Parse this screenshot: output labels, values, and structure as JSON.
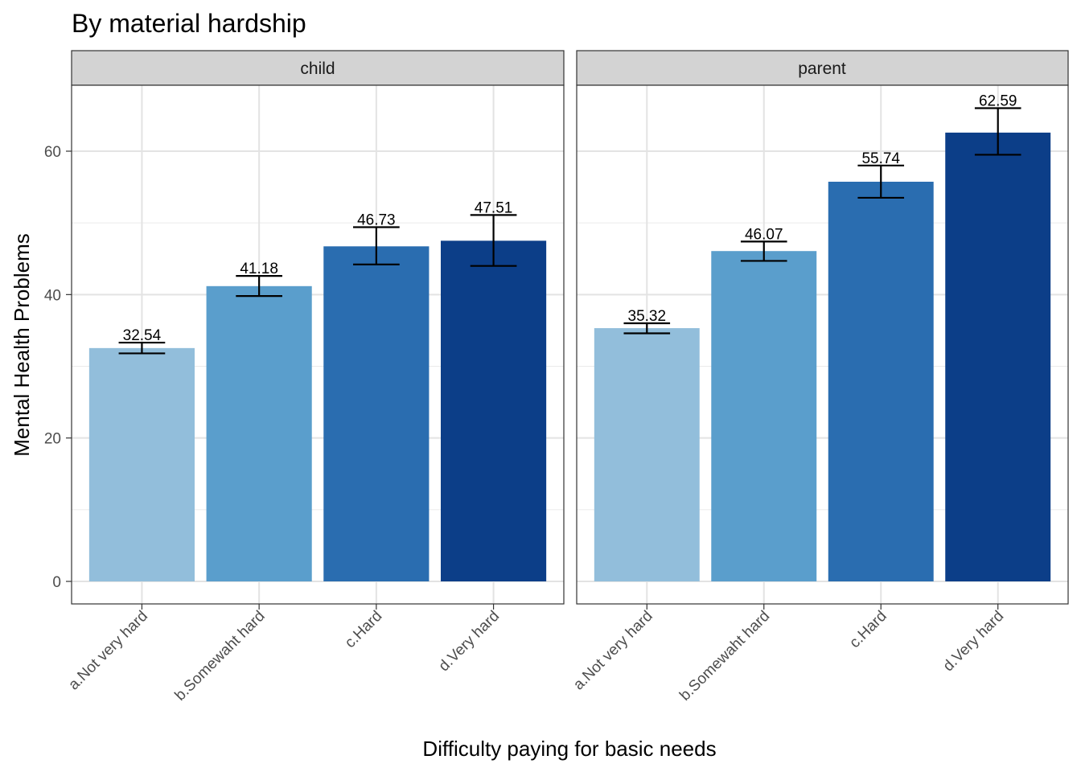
{
  "chart_data": {
    "type": "bar",
    "title": "By material hardship",
    "xlabel": "Difficulty paying for basic needs",
    "ylabel": "Mental Health Problems",
    "ylim": [
      0,
      70
    ],
    "yticks": [
      0,
      20,
      40,
      60
    ],
    "grid": true,
    "categories": [
      "a.Not very hard",
      "b.Somewaht hard",
      "c.Hard",
      "d.Very hard"
    ],
    "colors": [
      "#92bedb",
      "#5a9ecc",
      "#2a6db0",
      "#0c3e88"
    ],
    "panels": [
      {
        "name": "child",
        "values": [
          32.54,
          41.18,
          46.73,
          47.51
        ],
        "value_labels": [
          "32.54",
          "41.18",
          "46.73",
          "47.51"
        ],
        "error_low": [
          31.8,
          39.8,
          44.2,
          44.0
        ],
        "error_high": [
          33.3,
          42.6,
          49.4,
          51.1
        ]
      },
      {
        "name": "parent",
        "values": [
          35.32,
          46.07,
          55.74,
          62.59
        ],
        "value_labels": [
          "35.32",
          "46.07",
          "55.74",
          "62.59"
        ],
        "error_low": [
          34.6,
          44.7,
          53.5,
          59.5
        ],
        "error_high": [
          36.0,
          47.4,
          58.0,
          66.0
        ]
      }
    ]
  }
}
